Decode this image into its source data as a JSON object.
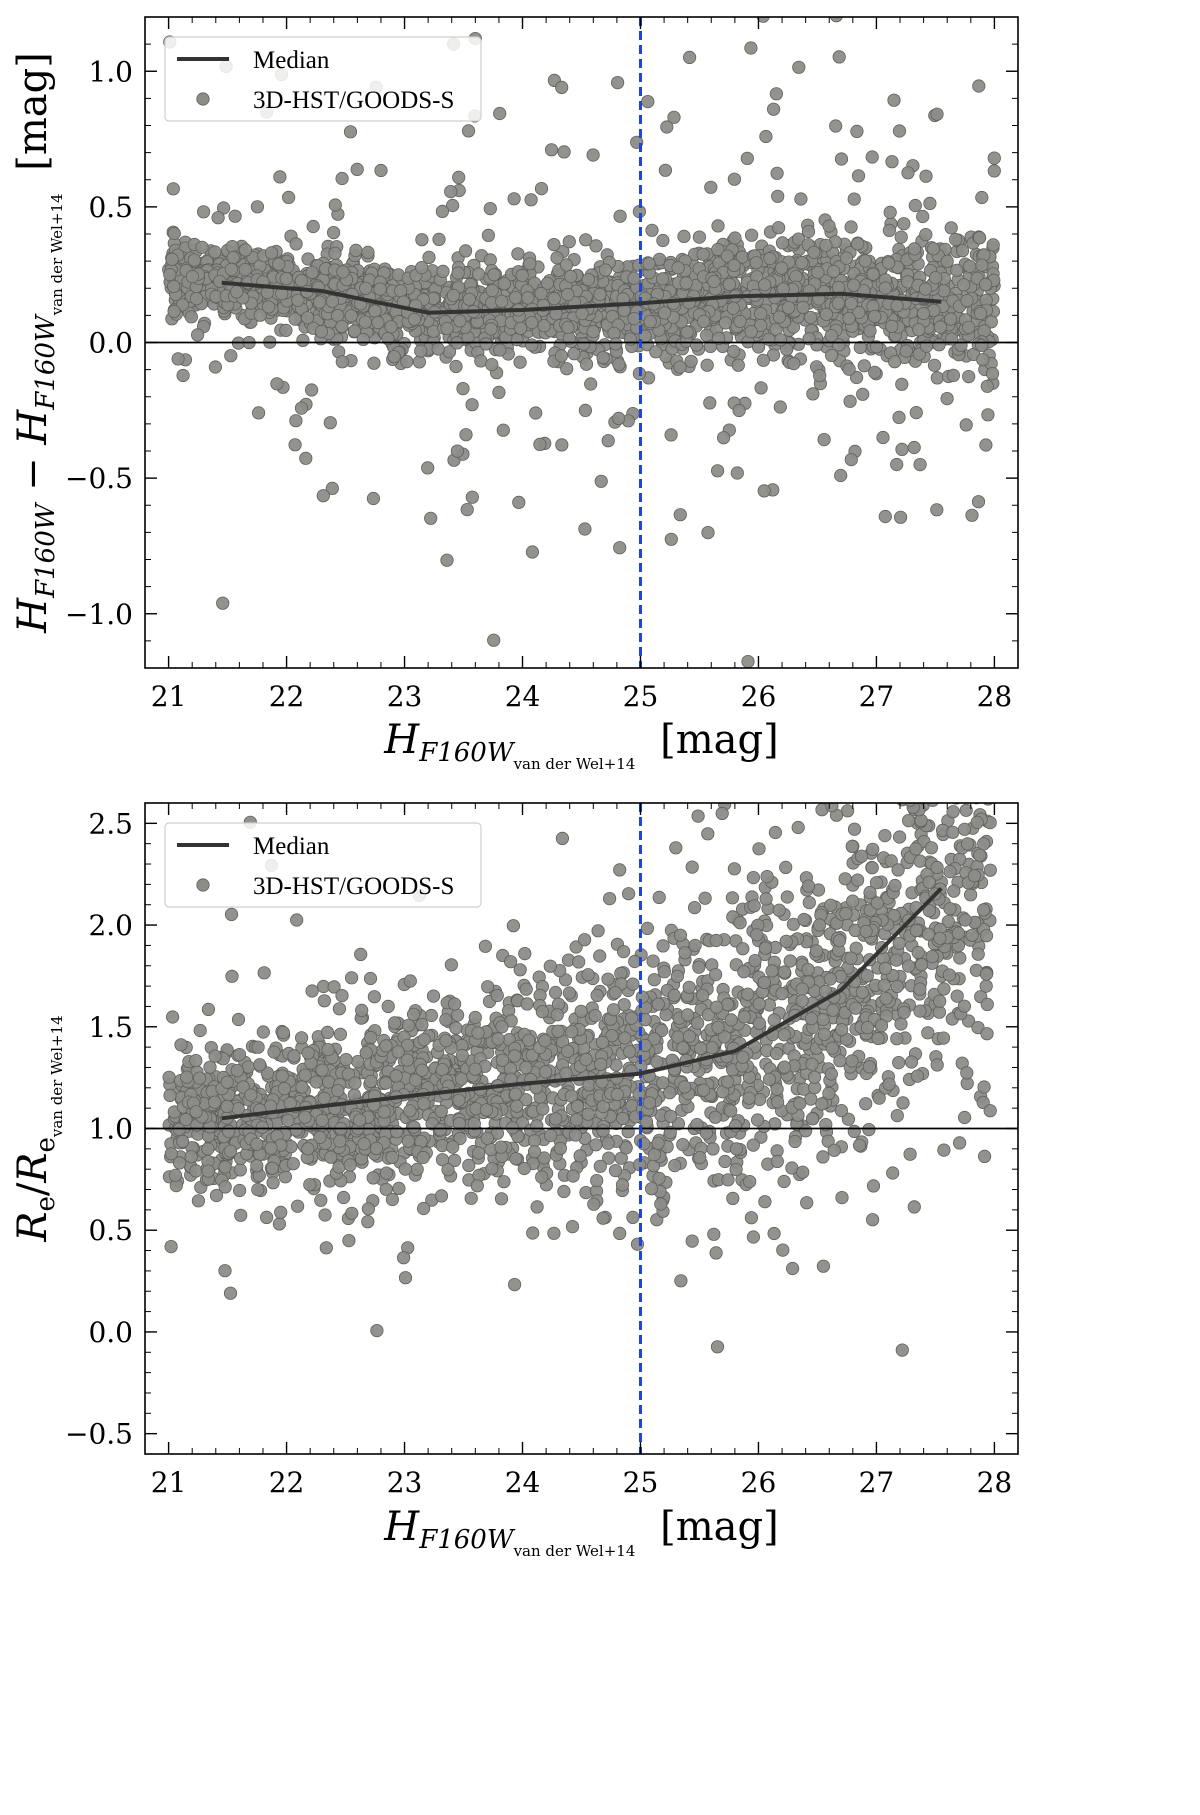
{
  "chart_data": [
    {
      "type": "scatter",
      "name": "magnitude-difference",
      "xlim": [
        20.8,
        28.2
      ],
      "ylim": [
        -1.2,
        1.2
      ],
      "xticks": [
        21,
        22,
        23,
        24,
        25,
        26,
        27,
        28
      ],
      "xtick_labels": [
        "21",
        "22",
        "23",
        "24",
        "25",
        "26",
        "27",
        "28"
      ],
      "yticks": [
        -1.0,
        -0.5,
        0.0,
        0.5,
        1.0
      ],
      "ytick_labels": [
        "−1.0",
        "−0.5",
        "0.0",
        "0.5",
        "1.0"
      ],
      "xlabel": {
        "main": "H",
        "sub": "F160W",
        "subsub": "van der Wel+14",
        "unit": "[mag]"
      },
      "ylabel": {
        "a": "H",
        "a_sub": "F160W",
        "minus": "−",
        "b": "H",
        "b_sub": "F160W",
        "b_subsub": "van der Wel+14",
        "unit": "[mag]"
      },
      "reference_y": 0.0,
      "reference_x": 25.0,
      "legend": {
        "position": "top-left",
        "median_label": "Median",
        "points_label": "3D-HST/GOODS-S"
      },
      "median": {
        "x": [
          21.45,
          22.3,
          23.2,
          24.0,
          25.0,
          25.8,
          26.7,
          27.55
        ],
        "y": [
          0.22,
          0.19,
          0.11,
          0.12,
          0.145,
          0.17,
          0.18,
          0.15
        ]
      },
      "scatter_model": {
        "count": 2600,
        "x_range": [
          21.0,
          28.0
        ],
        "center": "follows median",
        "core_spread": [
          0.07,
          0.14
        ],
        "outlier_fraction": 0.12,
        "outlier_spread": [
          0.4,
          0.55
        ]
      }
    },
    {
      "type": "scatter",
      "name": "size-ratio",
      "xlim": [
        20.8,
        28.2
      ],
      "ylim": [
        -0.6,
        2.6
      ],
      "xticks": [
        21,
        22,
        23,
        24,
        25,
        26,
        27,
        28
      ],
      "xtick_labels": [
        "21",
        "22",
        "23",
        "24",
        "25",
        "26",
        "27",
        "28"
      ],
      "yticks": [
        -0.5,
        0.0,
        0.5,
        1.0,
        1.5,
        2.0,
        2.5
      ],
      "ytick_labels": [
        "−0.5",
        "0.0",
        "0.5",
        "1.0",
        "1.5",
        "2.0",
        "2.5"
      ],
      "xlabel": {
        "main": "H",
        "sub": "F160W",
        "subsub": "van der Wel+14",
        "unit": "[mag]"
      },
      "ylabel": {
        "a": "R",
        "a_sub": "e",
        "slash": "/",
        "b": "R",
        "b_sub": "e",
        "b_subsub": "van der Wel+14"
      },
      "reference_y": 1.0,
      "reference_x": 25.0,
      "legend": {
        "position": "top-left",
        "median_label": "Median",
        "points_label": "3D-HST/GOODS-S"
      },
      "median": {
        "x": [
          21.45,
          22.3,
          23.2,
          24.0,
          25.0,
          25.8,
          26.7,
          27.55
        ],
        "y": [
          1.05,
          1.11,
          1.17,
          1.22,
          1.27,
          1.38,
          1.68,
          2.18
        ]
      },
      "scatter_model": {
        "count": 2600,
        "x_range": [
          21.0,
          28.0
        ],
        "center": "follows median",
        "core_spread": [
          0.18,
          0.55
        ],
        "outlier_fraction": 0.1,
        "outlier_spread": [
          0.5,
          0.7
        ]
      }
    }
  ],
  "colors": {
    "points": "#8c8c88",
    "points_edge": "#5f5f5c",
    "median_line": "#333333",
    "reference_line": "#000000",
    "magnitude_limit": "#1f45d8",
    "axes": "#000000",
    "legend_border": "#cfcfcf"
  }
}
